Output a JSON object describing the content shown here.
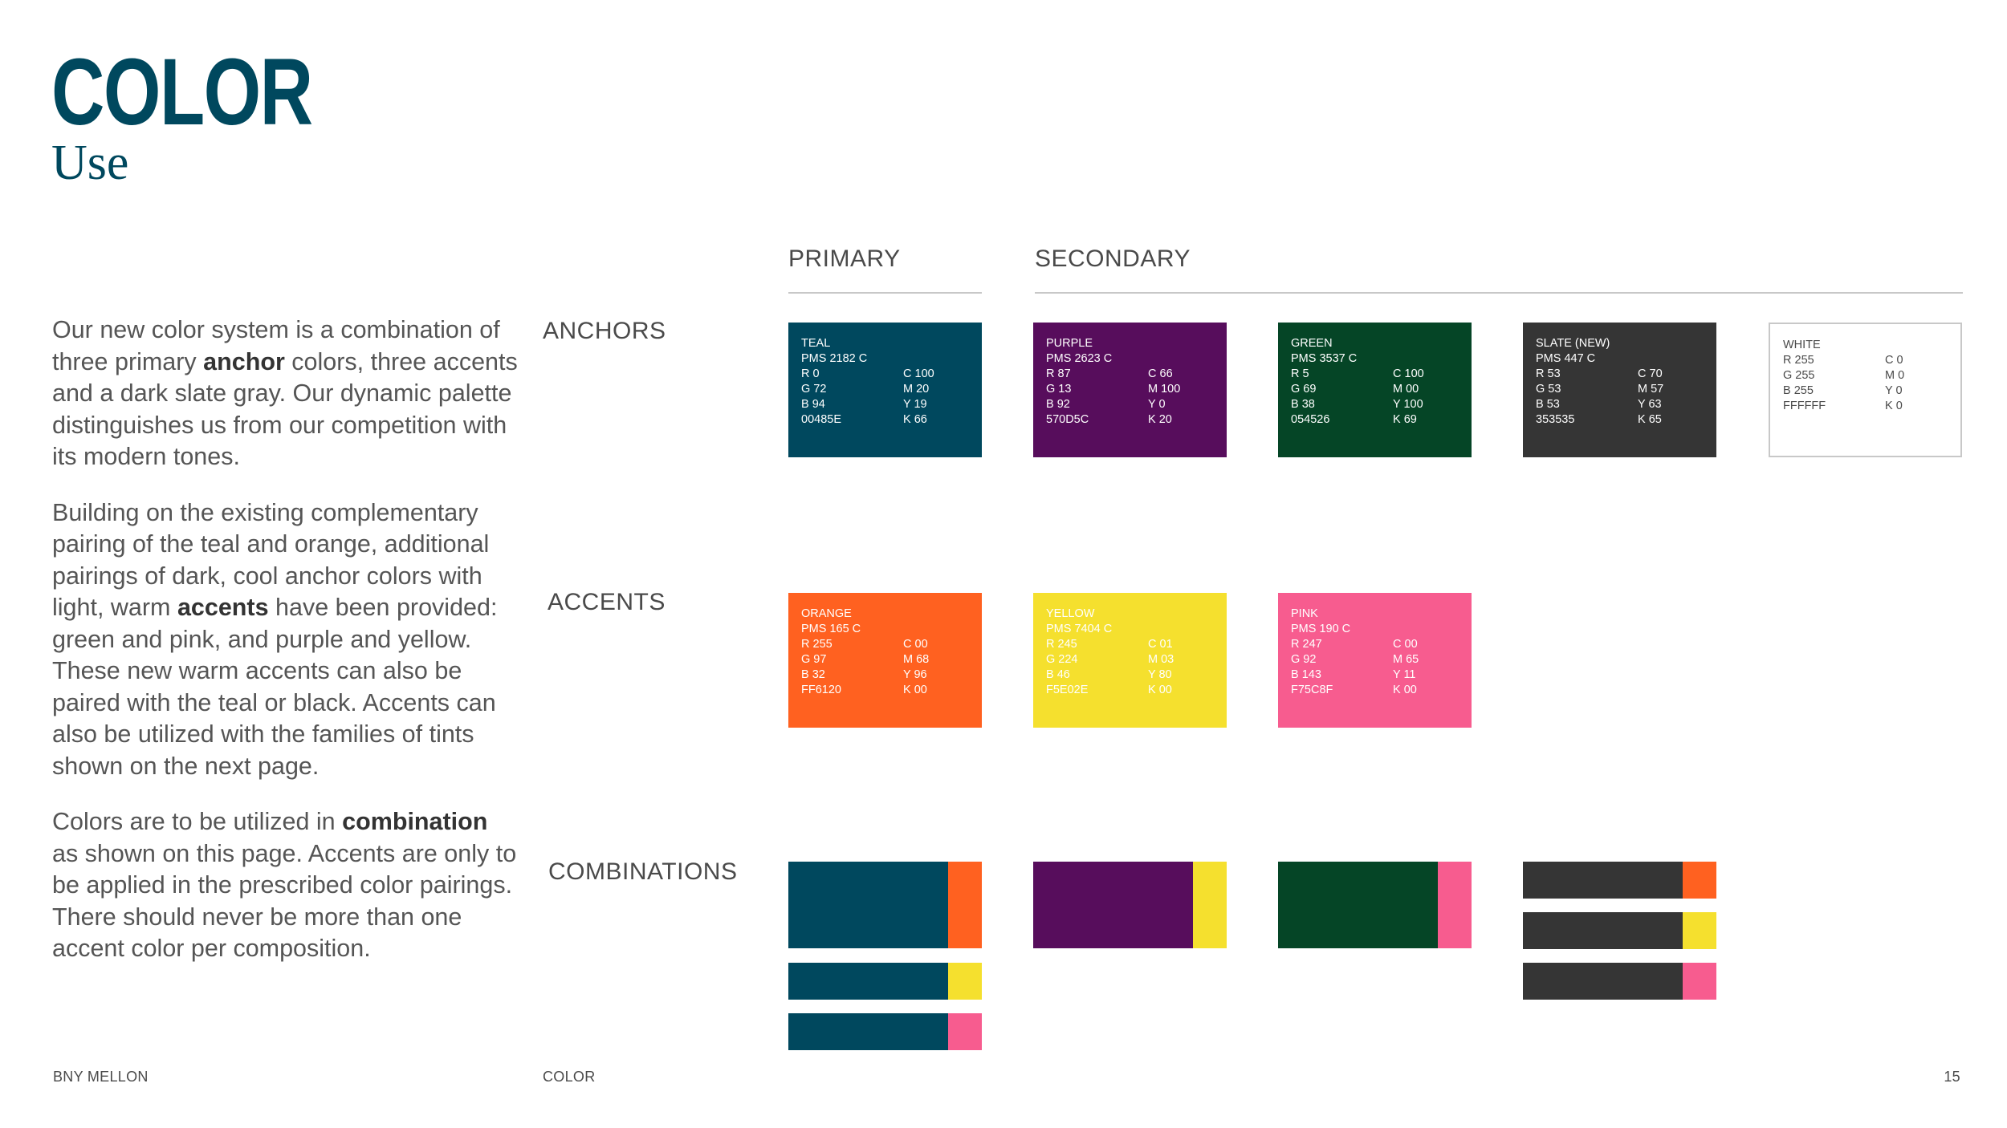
{
  "header": {
    "title": "COLOR",
    "subtitle": "Use"
  },
  "body": {
    "p1": {
      "a": "Our new color system is a combination of three primary ",
      "b": "anchor",
      "c": " colors, three accents and a dark slate gray. Our dynamic palette distinguishes us from our competition with its modern tones."
    },
    "p2": {
      "a": "Building on the existing complementary pairing of the teal and orange, additional pairings of dark, cool anchor colors with light, warm ",
      "b": "accents",
      "c": " have been provided: green and pink, and purple and yellow. These new warm accents can also be paired with the teal or black. Accents can also be utilized with the families of tints shown on the next page."
    },
    "p3": {
      "a": "Colors are to be utilized in ",
      "b": "combination",
      "c": " as shown on this page. Accents are only to be applied in the prescribed color pairings. There should never be more than one accent color per composition."
    }
  },
  "columns": {
    "primary": "PRIMARY",
    "secondary": "SECONDARY"
  },
  "rows": {
    "anchors": "ANCHORS",
    "accents": "ACCENTS",
    "combinations": "COMBINATIONS"
  },
  "anchors": [
    {
      "name": "TEAL",
      "pms": "PMS 2182 C",
      "r": "R 0",
      "g": "G 72",
      "b": "B 94",
      "hex": "00485E",
      "c": "C  100",
      "m": "M 20",
      "y": "Y  19",
      "k": "K  66",
      "color": "#00485e"
    },
    {
      "name": "PURPLE",
      "pms": "PMS 2623 C",
      "r": "R 87",
      "g": "G 13",
      "b": "B 92",
      "hex": "570D5C",
      "c": "C 66",
      "m": "M 100",
      "y": "Y 0",
      "k": "K 20",
      "color": "#570d5c"
    },
    {
      "name": "GREEN",
      "pms": "PMS 3537 C",
      "r": "R 5",
      "g": "G 69",
      "b": "B 38",
      "hex": "054526",
      "c": "C 100",
      "m": "M 00",
      "y": "Y 100",
      "k": "K 69",
      "color": "#054526"
    },
    {
      "name": "SLATE (NEW)",
      "pms": "PMS 447 C",
      "r": "R 53",
      "g": "G 53",
      "b": "B 53",
      "hex": "353535",
      "c": "C 70",
      "m": "M 57",
      "y": "Y 63",
      "k": "K 65",
      "color": "#353535"
    },
    {
      "name": "WHITE",
      "pms": "",
      "r": "R 255",
      "g": "G 255",
      "b": "B 255",
      "hex": "FFFFFF",
      "c": "C  0",
      "m": "M 0",
      "y": "Y  0",
      "k": "K  0",
      "color": "#ffffff"
    }
  ],
  "accents": [
    {
      "name": "ORANGE",
      "pms": "PMS 165 C",
      "r": "R 255",
      "g": "G 97",
      "b": "B 32",
      "hex": "FF6120",
      "c": "C 00",
      "m": "M 68",
      "y": "Y 96",
      "k": "K 00",
      "color": "#ff6120"
    },
    {
      "name": "YELLOW",
      "pms": "PMS 7404 C",
      "r": "R 245",
      "g": "G 224",
      "b": "B 46",
      "hex": "F5E02E",
      "c": "C 01",
      "m": "M 03",
      "y": "Y 80",
      "k": "K 00",
      "color": "#f5e02e"
    },
    {
      "name": "PINK",
      "pms": "PMS 190 C",
      "r": "R 247",
      "g": "G 92",
      "b": "B 143",
      "hex": "F75C8F",
      "c": "C 00",
      "m": "M 65",
      "y": "Y 11",
      "k": "K 00",
      "color": "#f75c8f"
    }
  ],
  "footer": {
    "left": "BNY MELLON",
    "center": "COLOR",
    "page": "15"
  }
}
